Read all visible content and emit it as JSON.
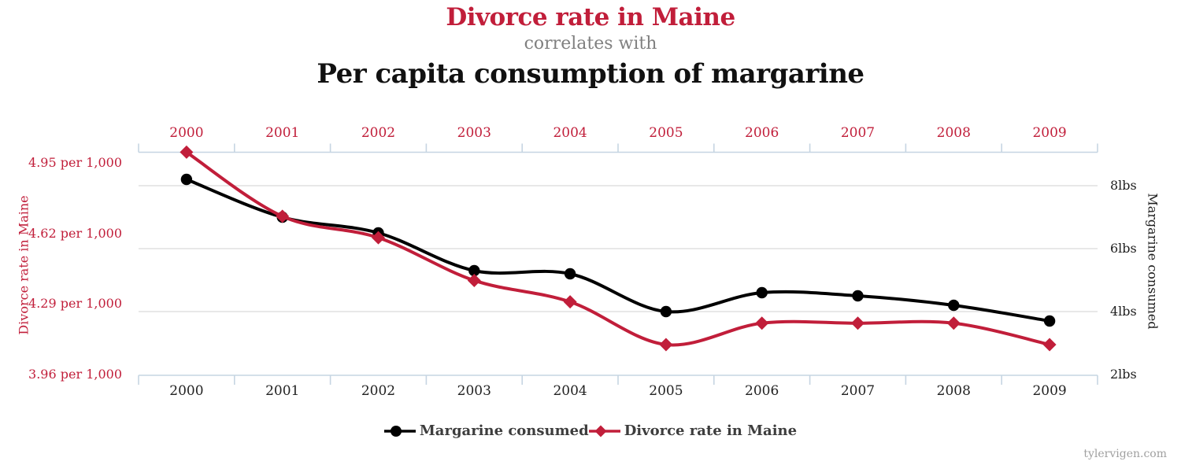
{
  "header": {
    "title_red": "Divorce rate in Maine",
    "subtitle": "correlates with",
    "title_black": "Per capita consumption of margarine"
  },
  "colors": {
    "accent_red": "#c11e3a",
    "series_black": "#000000",
    "axis_line_blue": "#c6d5e2",
    "gridline_gray": "#d9d9d9",
    "subtitle_gray": "#808080",
    "legend_text_gray": "#3d3d3d",
    "watermark_gray": "#a0a0a0"
  },
  "chart_data": {
    "type": "line",
    "x": [
      2000,
      2001,
      2002,
      2003,
      2004,
      2005,
      2006,
      2007,
      2008,
      2009
    ],
    "series": [
      {
        "name": "Margarine consumed",
        "axis": "right",
        "color": "#000000",
        "marker": "circle",
        "units": "lbs",
        "values": [
          8.2,
          7,
          6.5,
          5.3,
          5.2,
          4,
          4.6,
          4.5,
          4.2,
          3.7
        ]
      },
      {
        "name": "Divorce rate in Maine",
        "axis": "left",
        "color": "#c11e3a",
        "marker": "diamond",
        "units": "per 1,000",
        "values": [
          5.0,
          4.7,
          4.6,
          4.4,
          4.3,
          4.1,
          4.2,
          4.2,
          4.2,
          4.1
        ]
      }
    ],
    "left_axis": {
      "title": "Divorce rate in Maine",
      "tick_labels": [
        "4.95 per 1,000",
        "4.62 per 1,000",
        "4.29 per 1,000",
        "3.96 per 1,000"
      ],
      "tick_values": [
        4.95,
        4.62,
        4.29,
        3.96
      ],
      "range": [
        3.96,
        5.0
      ]
    },
    "right_axis": {
      "title": "Margarine consumed",
      "tick_labels": [
        "8lbs",
        "6lbs",
        "4lbs",
        "2lbs"
      ],
      "tick_values": [
        8,
        6,
        4,
        2
      ],
      "range": [
        1.98,
        9.06
      ]
    },
    "grid": "horizontal",
    "legend_position": "bottom",
    "smoothing": true
  },
  "watermark": "tylervigen.com"
}
